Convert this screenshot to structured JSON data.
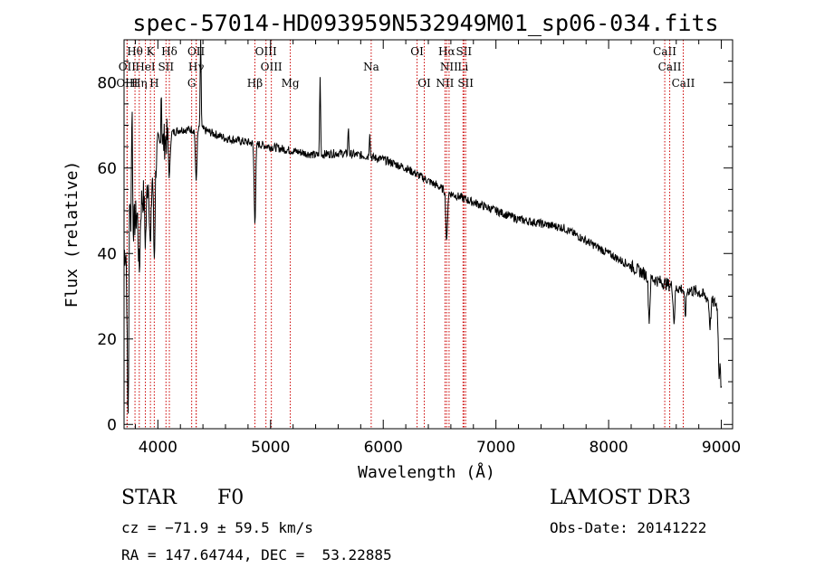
{
  "chart_data": {
    "type": "line",
    "title": "spec-57014-HD093959N532949M01_sp06-034.fits",
    "xlabel": "Wavelength (Å)",
    "ylabel": "Flux (relative)",
    "xlim": [
      3700,
      9100
    ],
    "ylim": [
      -1,
      90
    ],
    "xticks": [
      4000,
      5000,
      6000,
      7000,
      8000,
      9000
    ],
    "yticks": [
      0,
      20,
      40,
      60,
      80
    ],
    "continuum": [
      [
        3700,
        40
      ],
      [
        3800,
        48
      ],
      [
        3900,
        56
      ],
      [
        4000,
        64
      ],
      [
        4100,
        68
      ],
      [
        4200,
        69
      ],
      [
        4400,
        69
      ],
      [
        4600,
        67
      ],
      [
        4800,
        66
      ],
      [
        5000,
        65
      ],
      [
        5200,
        64
      ],
      [
        5400,
        63
      ],
      [
        5600,
        63.5
      ],
      [
        5800,
        63
      ],
      [
        6000,
        62
      ],
      [
        6200,
        60
      ],
      [
        6400,
        57
      ],
      [
        6600,
        54
      ],
      [
        6800,
        52
      ],
      [
        7000,
        50
      ],
      [
        7200,
        48
      ],
      [
        7400,
        47
      ],
      [
        7600,
        46
      ],
      [
        7800,
        43
      ],
      [
        8000,
        40
      ],
      [
        8200,
        37
      ],
      [
        8400,
        34
      ],
      [
        8600,
        32
      ],
      [
        8800,
        31
      ],
      [
        8960,
        28
      ]
    ],
    "features": [
      [
        3735,
        -40
      ],
      [
        3750,
        15
      ],
      [
        3770,
        30
      ],
      [
        3835,
        -15
      ],
      [
        3890,
        -12
      ],
      [
        3934,
        -18
      ],
      [
        3968,
        -22
      ],
      [
        4030,
        14
      ],
      [
        4102,
        -10
      ],
      [
        4340,
        -12
      ],
      [
        4380,
        22
      ],
      [
        4861,
        -18
      ],
      [
        5440,
        18
      ],
      [
        5690,
        6
      ],
      [
        5880,
        6
      ],
      [
        6563,
        -12
      ],
      [
        8360,
        -10
      ],
      [
        8580,
        -8
      ],
      [
        8680,
        -6
      ],
      [
        8900,
        -6
      ],
      [
        8980,
        -16
      ],
      [
        9000,
        -20
      ]
    ],
    "emission_lines": [
      {
        "label": "Hθ",
        "wavelength": 3797,
        "row": 0
      },
      {
        "label": "K",
        "wavelength": 3934,
        "row": 0
      },
      {
        "label": "Hδ",
        "wavelength": 4102,
        "row": 0
      },
      {
        "label": "OII",
        "wavelength": 4340,
        "row": 0
      },
      {
        "label": "OIII",
        "wavelength": 4959,
        "row": 0
      },
      {
        "label": "OI",
        "wavelength": 6300,
        "row": 0
      },
      {
        "label": "Hα",
        "wavelength": 6563,
        "row": 0
      },
      {
        "label": "SII",
        "wavelength": 6716,
        "row": 0
      },
      {
        "label": "CaII",
        "wavelength": 8498,
        "row": 0
      },
      {
        "label": "OII",
        "wavelength": 3727,
        "row": 1
      },
      {
        "label": "HeI",
        "wavelength": 3889,
        "row": 1
      },
      {
        "label": "SII",
        "wavelength": 4072,
        "row": 1
      },
      {
        "label": "Hγ",
        "wavelength": 4340,
        "row": 1
      },
      {
        "label": "OIII",
        "wavelength": 5007,
        "row": 1
      },
      {
        "label": "NII",
        "wavelength": 6584,
        "row": 1
      },
      {
        "label": "Li",
        "wavelength": 6708,
        "row": 1
      },
      {
        "label": "Na",
        "wavelength": 5893,
        "row": 1
      },
      {
        "label": "CaII",
        "wavelength": 8542,
        "row": 1
      },
      {
        "label": "OIII",
        "wavelength": 3727,
        "row": 2
      },
      {
        "label": "Hη",
        "wavelength": 3835,
        "row": 2
      },
      {
        "label": "H",
        "wavelength": 3968,
        "row": 2
      },
      {
        "label": "G",
        "wavelength": 4300,
        "row": 2
      },
      {
        "label": "Hβ",
        "wavelength": 4861,
        "row": 2
      },
      {
        "label": "Mg",
        "wavelength": 5175,
        "row": 2
      },
      {
        "label": "OI",
        "wavelength": 6364,
        "row": 2
      },
      {
        "label": "NII",
        "wavelength": 6548,
        "row": 2
      },
      {
        "label": "SII",
        "wavelength": 6731,
        "row": 2
      },
      {
        "label": "CaII",
        "wavelength": 8662,
        "row": 2
      }
    ],
    "line_color": "#000000",
    "marker_line_color": "#cc0000"
  },
  "info": {
    "class": "STAR",
    "subclass": "F0",
    "survey": "LAMOST DR3",
    "cz": "cz = −71.9 ± 59.5 km/s",
    "obs_date": "Obs-Date: 20141222",
    "coords": "RA = 147.64744, DEC =  53.22885"
  }
}
